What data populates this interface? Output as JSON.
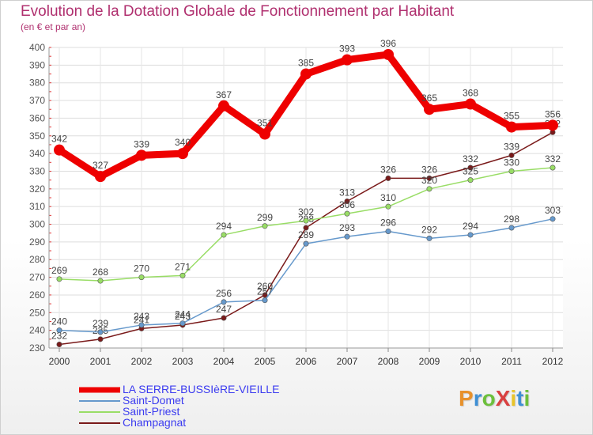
{
  "header": {
    "title": "Evolution de la Dotation Globale de Fonctionnement par Habitant",
    "subtitle": "(en € et par an)"
  },
  "logo": {
    "text": "ProXiti",
    "colors": [
      "#e8912b",
      "#3f8fd4",
      "#6cbf3c",
      "#d94040",
      "#e8c42b",
      "#3f8fd4",
      "#6cbf3c"
    ]
  },
  "chart_data": {
    "type": "line",
    "title": "Evolution de la Dotation Globale de Fonctionnement par Habitant",
    "subtitle": "(en € et par an)",
    "x": [
      "2000",
      "2001",
      "2002",
      "2003",
      "2004",
      "2005",
      "2006",
      "2007",
      "2008",
      "2009",
      "2010",
      "2011",
      "2012"
    ],
    "ylim": [
      230,
      400
    ],
    "yticks": [
      "230",
      "240",
      "250",
      "260",
      "270",
      "280",
      "290",
      "300",
      "310",
      "320",
      "330",
      "340",
      "350",
      "360",
      "370",
      "380",
      "390",
      "400"
    ],
    "grid": true,
    "legend_position": "bottom-left",
    "series": [
      {
        "name": "LA SERRE-BUSSIèRE-VIEILLE",
        "color": "#ee0000",
        "values": [
          342,
          327,
          339,
          340,
          367,
          351,
          385,
          393,
          396,
          365,
          368,
          355,
          356
        ]
      },
      {
        "name": "Saint-Domet",
        "color": "#6699cc",
        "values": [
          240,
          239,
          243,
          244,
          256,
          257,
          289,
          293,
          296,
          292,
          294,
          298,
          303
        ]
      },
      {
        "name": "Saint-Priest",
        "color": "#99dd66",
        "values": [
          269,
          268,
          270,
          271,
          294,
          299,
          302,
          306,
          310,
          320,
          325,
          330,
          332
        ]
      },
      {
        "name": "Champagnat",
        "color": "#7a1a1a",
        "values": [
          232,
          235,
          241,
          243,
          247,
          260,
          298,
          313,
          326,
          326,
          332,
          339,
          352
        ]
      }
    ]
  }
}
